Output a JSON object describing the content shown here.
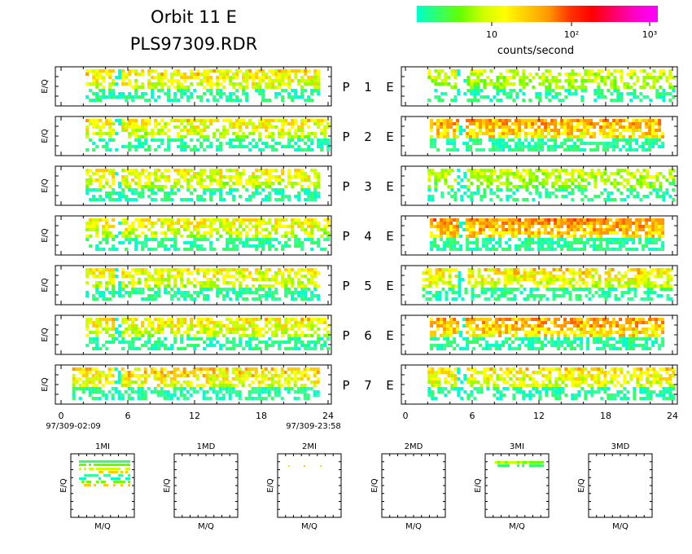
{
  "header": {
    "title_line1": "Orbit 11 E",
    "title_line2": "PLS97309.RDR"
  },
  "colorbar": {
    "tick_labels": [
      "10",
      "10²",
      "10³"
    ],
    "unit_label": "counts/second",
    "stops": [
      "#00ffcc",
      "#33ff66",
      "#66ff00",
      "#ccff00",
      "#ffff00",
      "#ffcc00",
      "#ff9900",
      "#ff3300",
      "#ff0000",
      "#ff0066",
      "#ff00cc",
      "#ff00ff"
    ]
  },
  "panels": {
    "ylabel": "E/Q",
    "rows": [
      {
        "label": "P",
        "number": "1",
        "suffix": "E"
      },
      {
        "label": "P",
        "number": "2",
        "suffix": "E"
      },
      {
        "label": "P",
        "number": "3",
        "suffix": "E"
      },
      {
        "label": "P",
        "number": "4",
        "suffix": "E"
      },
      {
        "label": "P",
        "number": "5",
        "suffix": "E"
      },
      {
        "label": "P",
        "number": "6",
        "suffix": "E"
      },
      {
        "label": "P",
        "number": "7",
        "suffix": "E"
      }
    ],
    "x_ticks": [
      "0",
      "6",
      "12",
      "18",
      "24"
    ],
    "start_time": "97/309-02:09",
    "end_time": "97/309-23:58"
  },
  "mass_plots": {
    "ylabel": "E/Q",
    "xlabel": "M/Q",
    "titles": [
      "1MI",
      "1MD",
      "2MI",
      "2MD",
      "3MI",
      "3MD"
    ]
  },
  "chart_data": {
    "type": "heatmap",
    "title": "Orbit 11 E",
    "subtitle": "PLS97309.RDR",
    "colorbar_label": "counts/second",
    "colorbar_scale": "log",
    "xlim": [
      0,
      24
    ],
    "x_ticks": [
      0,
      6,
      12,
      18,
      24
    ],
    "ylabel": "E/Q",
    "panels": [
      {
        "name": "P 1 E",
        "side": "left",
        "x_range": [
          2.2,
          23.2
        ],
        "intensity": 0.35
      },
      {
        "name": "P 1 E",
        "side": "right",
        "x_range": [
          2.0,
          24.0
        ],
        "intensity": 0.15
      },
      {
        "name": "P 2 E",
        "side": "left",
        "x_range": [
          2.2,
          23.9
        ],
        "intensity": 0.3
      },
      {
        "name": "P 2 E",
        "side": "right",
        "x_range": [
          2.2,
          23.2
        ],
        "intensity": 0.55
      },
      {
        "name": "P 3 E",
        "side": "left",
        "x_range": [
          2.2,
          23.2
        ],
        "intensity": 0.28
      },
      {
        "name": "P 3 E",
        "side": "right",
        "x_range": [
          2.0,
          24.0
        ],
        "intensity": 0.15
      },
      {
        "name": "P 4 E",
        "side": "left",
        "x_range": [
          2.2,
          23.9
        ],
        "intensity": 0.3
      },
      {
        "name": "P 4 E",
        "side": "right",
        "x_range": [
          2.2,
          23.2
        ],
        "intensity": 0.6
      },
      {
        "name": "P 5 E",
        "side": "left",
        "x_range": [
          2.2,
          23.2
        ],
        "intensity": 0.28
      },
      {
        "name": "P 5 E",
        "side": "right",
        "x_range": [
          1.5,
          24.0
        ],
        "intensity": 0.35
      },
      {
        "name": "P 6 E",
        "side": "left",
        "x_range": [
          2.2,
          23.9
        ],
        "intensity": 0.32
      },
      {
        "name": "P 6 E",
        "side": "right",
        "x_range": [
          2.2,
          23.2
        ],
        "intensity": 0.55
      },
      {
        "name": "P 7 E",
        "side": "left",
        "x_range": [
          1.0,
          23.2
        ],
        "intensity": 0.4
      },
      {
        "name": "P 7 E",
        "side": "right",
        "x_range": [
          2.0,
          24.0
        ],
        "intensity": 0.35
      }
    ],
    "mass_panels": [
      "1MI",
      "1MD",
      "2MI",
      "2MD",
      "3MI",
      "3MD"
    ]
  }
}
